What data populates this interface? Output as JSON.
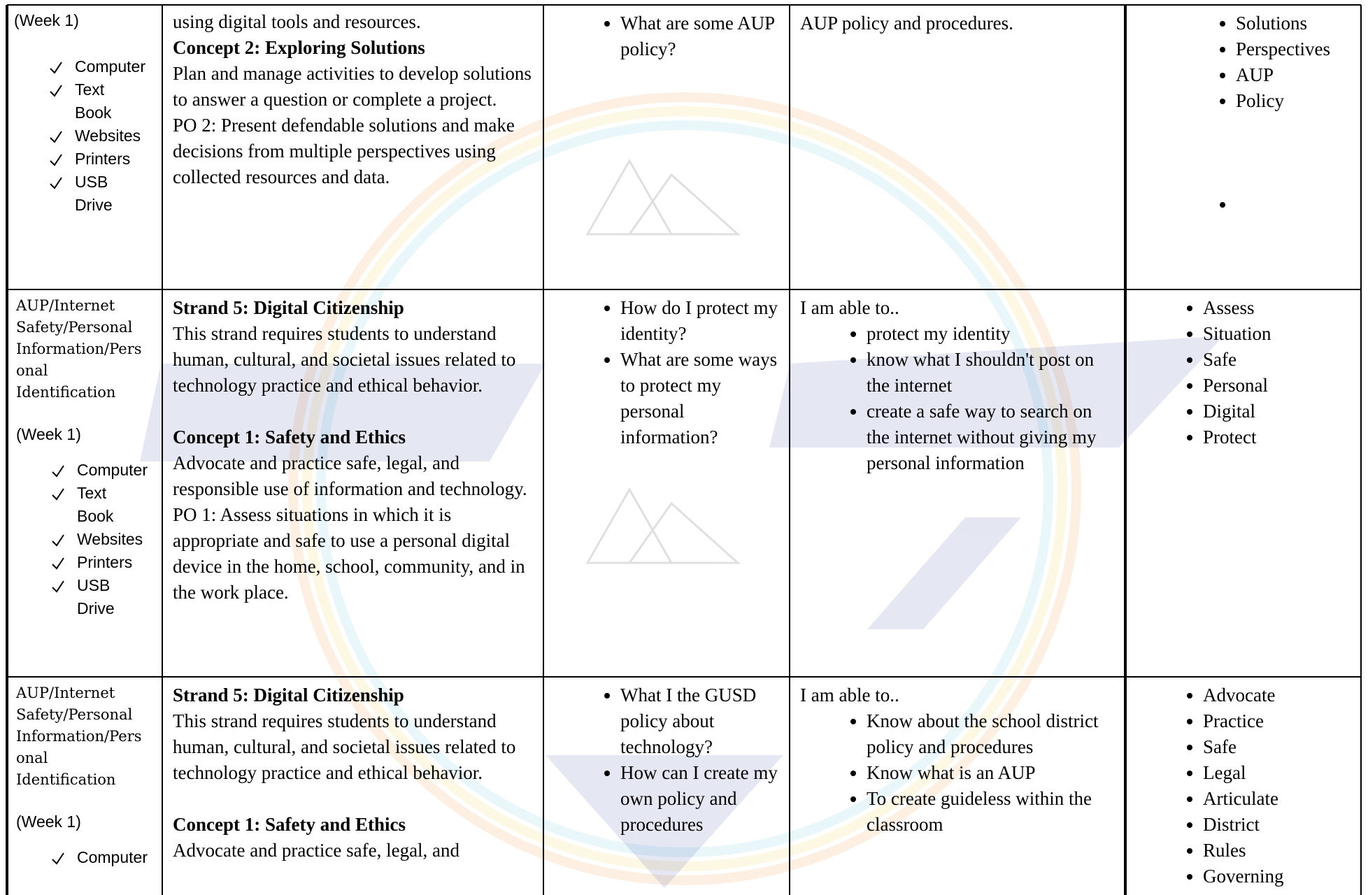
{
  "table": {
    "rows": [
      [
        {
          "week": "(Week 1)",
          "checklist": [
            "Computer",
            "Text Book",
            "Websites",
            "Printers",
            "USB Drive"
          ]
        },
        {
          "paragraphs": [
            {
              "text": "using digital tools and resources."
            },
            {
              "text": "Concept 2: Exploring Solutions",
              "bold": true
            },
            {
              "text": "Plan and manage activities to develop solutions to answer a question or complete a project."
            },
            {
              "text": "PO 2: Present defendable solutions and make decisions from multiple perspectives using collected resources and data."
            }
          ]
        },
        {
          "bullets": [
            "What are some AUP policy?"
          ]
        },
        {
          "intro": "AUP policy and procedures."
        },
        {
          "bullets": [
            "Solutions",
            "Perspectives",
            "AUP",
            "Policy"
          ]
        }
      ],
      [
        {
          "topic": "AUP/Internet Safety/Personal Information/Personal Identification",
          "week": "(Week 1)",
          "checklist": [
            "Computer",
            "Text Book",
            "Websites",
            "Printers",
            "USB Drive"
          ]
        },
        {
          "paragraphs": [
            {
              "text": "Strand 5: Digital Citizenship",
              "bold": true
            },
            {
              "text": "This strand requires students to understand human, cultural, and societal issues related to technology practice and ethical behavior."
            },
            {
              "text": "Concept 1: Safety and Ethics",
              "bold": true,
              "space_before": true
            },
            {
              "text": "Advocate and practice safe, legal, and responsible use of information and technology."
            },
            {
              "text": "PO 1: Assess situations in which it is appropriate and safe to use a personal digital device in the home, school, community, and in the work place."
            }
          ]
        },
        {
          "bullets": [
            "How do I protect my identity?",
            "What are some ways to protect my personal information?"
          ]
        },
        {
          "intro": "I am able to..",
          "bullets": [
            "protect my identity",
            "know what I shouldn't post on the internet",
            "create a safe way to search on the internet without giving my personal information"
          ]
        },
        {
          "bullets": [
            "Assess",
            "Situation",
            "Safe",
            "Personal",
            "Digital",
            "Protect"
          ]
        }
      ],
      [
        {
          "topic": "AUP/Internet Safety/Personal Information/Personal Identification",
          "week": "(Week 1)",
          "checklist": [
            "Computer"
          ]
        },
        {
          "paragraphs": [
            {
              "text": "Strand 5: Digital Citizenship",
              "bold": true
            },
            {
              "text": "This strand requires students to understand human, cultural, and societal issues related to technology practice and ethical behavior."
            },
            {
              "text": "Concept 1: Safety and Ethics",
              "bold": true,
              "space_before": true
            },
            {
              "text": "Advocate and practice safe, legal, and"
            }
          ]
        },
        {
          "bullets": [
            "What I the GUSD policy about technology?",
            "How can I create my own policy and procedures"
          ]
        },
        {
          "intro": "I am able to..",
          "bullets": [
            "Know about the school district policy and procedures",
            "Know what is an AUP",
            "To create guideless within the classroom"
          ]
        },
        {
          "bullets": [
            "Advocate",
            "Practice",
            "Safe",
            "Legal",
            "Articulate",
            "District",
            "Rules",
            "Governing"
          ]
        }
      ]
    ]
  }
}
